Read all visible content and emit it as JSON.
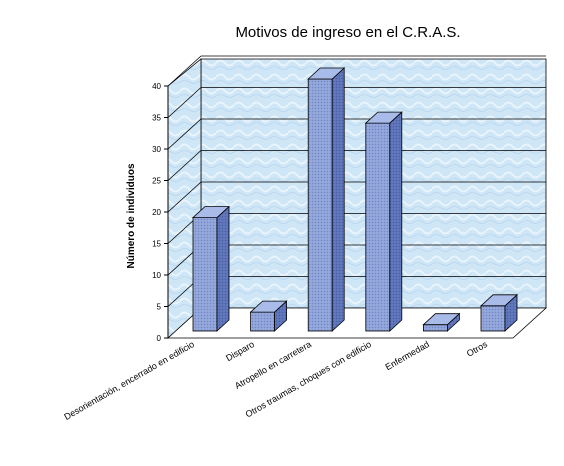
{
  "chart_data": {
    "type": "bar",
    "title": "Motivos de ingreso en el C.R.A.S.",
    "ylabel": "Número de individuos",
    "xlabel": "",
    "categories": [
      "Desorientación, encerrado en edificio",
      "Disparo",
      "Atropello en carretera",
      "Otros traumas, choques con edificio",
      "Enfermedad",
      "Otros"
    ],
    "values": [
      18,
      3,
      40,
      33,
      1,
      4
    ],
    "ylim": [
      0,
      40
    ],
    "yticks": [
      0,
      5,
      10,
      15,
      20,
      25,
      30,
      35,
      40
    ],
    "grid": true,
    "legend": "none",
    "three_d": true,
    "colors": {
      "bar_front": "#8ea2d8",
      "bar_side": "#5c72b8",
      "bar_top": "#a9bbe8",
      "bar_edge": "#000000",
      "wall": "#cfe6f6",
      "floor": "#ffffff",
      "grid": "#000000"
    }
  }
}
